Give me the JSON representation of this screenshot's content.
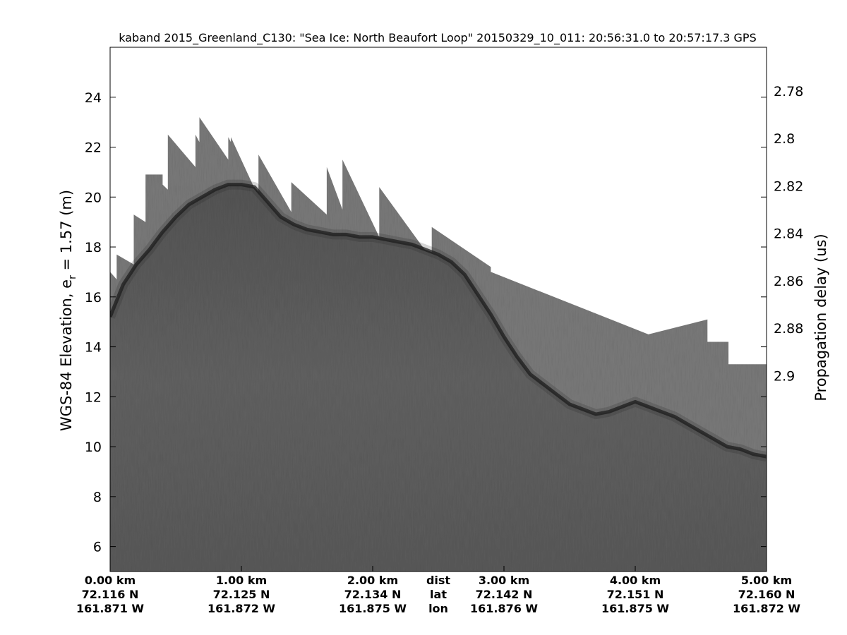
{
  "chart_data": {
    "type": "heatmap",
    "title": "kaband 2015_Greenland_C130: \"Sea Ice: North Beaufort Loop\"  20150329_10_011: 20:56:31.0 to 20:57:17.3 GPS",
    "ylabel_left_main": "WGS-84 Elevation, e",
    "ylabel_left_sub": "r",
    "ylabel_left_tail": " = 1.57 (m)",
    "ylabel_right": "Propagation delay (us)",
    "left_axis": {
      "ylim": [
        5,
        26
      ],
      "ticks": [
        6,
        8,
        10,
        12,
        14,
        16,
        18,
        20,
        22,
        24
      ],
      "tick_labels": [
        "6",
        "8",
        "10",
        "12",
        "14",
        "16",
        "18",
        "20",
        "22",
        "24"
      ]
    },
    "right_axis": {
      "ticks": [
        2.78,
        2.8,
        2.82,
        2.84,
        2.86,
        2.88,
        2.9
      ],
      "tick_labels": [
        "2.78",
        "2.8",
        "2.82",
        "2.84",
        "2.86",
        "2.88",
        "2.9"
      ],
      "label_elevations": [
        24.25,
        22.35,
        20.45,
        18.55,
        16.65,
        14.75,
        12.85
      ]
    },
    "x_axis": {
      "xlim_km": [
        0,
        5
      ],
      "ticks_km": [
        0,
        1,
        2,
        3,
        4,
        5
      ],
      "dist_labels": [
        "0.00 km",
        "1.00 km",
        "2.00 km",
        "3.00 km",
        "4.00 km",
        "5.00 km"
      ],
      "lat_labels": [
        "72.116 N",
        "72.125 N",
        "72.134 N",
        "72.142 N",
        "72.151 N",
        "72.160 N"
      ],
      "lon_labels": [
        "161.871 W",
        "161.872 W",
        "161.875 W",
        "161.876 W",
        "161.875 W",
        "161.872 W"
      ],
      "row_names": [
        "dist",
        "lat",
        "lon"
      ],
      "row_names_at_km": 2.5
    },
    "surface_profile": {
      "x_km": [
        0,
        0.1,
        0.2,
        0.3,
        0.4,
        0.5,
        0.6,
        0.7,
        0.8,
        0.9,
        1.0,
        1.1,
        1.2,
        1.3,
        1.4,
        1.5,
        1.6,
        1.7,
        1.8,
        1.9,
        2.0,
        2.1,
        2.2,
        2.3,
        2.4,
        2.5,
        2.6,
        2.7,
        2.8,
        2.9,
        3.0,
        3.1,
        3.2,
        3.3,
        3.4,
        3.5,
        3.6,
        3.7,
        3.8,
        3.9,
        4.0,
        4.1,
        4.2,
        4.3,
        4.4,
        4.5,
        4.6,
        4.7,
        4.8,
        4.9,
        5.0
      ],
      "elevation_m": [
        15.2,
        16.5,
        17.3,
        17.9,
        18.6,
        19.2,
        19.7,
        20.0,
        20.3,
        20.5,
        20.5,
        20.4,
        19.8,
        19.2,
        18.9,
        18.7,
        18.6,
        18.5,
        18.5,
        18.4,
        18.4,
        18.3,
        18.2,
        18.1,
        17.9,
        17.7,
        17.4,
        16.9,
        16.1,
        15.3,
        14.4,
        13.6,
        12.9,
        12.5,
        12.1,
        11.7,
        11.5,
        11.3,
        11.4,
        11.6,
        11.8,
        11.6,
        11.4,
        11.2,
        10.9,
        10.6,
        10.3,
        10.0,
        9.9,
        9.7,
        9.6
      ]
    },
    "window_top_edge": {
      "x_km": [
        0,
        0.05,
        0.05,
        0.18,
        0.18,
        0.27,
        0.27,
        0.4,
        0.4,
        0.44,
        0.44,
        0.65,
        0.65,
        0.68,
        0.68,
        0.9,
        0.9,
        0.92,
        0.92,
        1.13,
        1.13,
        1.38,
        1.38,
        1.65,
        1.65,
        1.77,
        1.77,
        2.05,
        2.05,
        2.45,
        2.45,
        2.9,
        2.9,
        4.1,
        4.55,
        4.55,
        4.71,
        4.71,
        5.0
      ],
      "elevation_m": [
        17.0,
        16.7,
        17.7,
        17.3,
        19.3,
        19.0,
        20.9,
        20.9,
        20.5,
        20.3,
        22.5,
        21.2,
        22.5,
        22.2,
        23.2,
        21.5,
        22.4,
        22.2,
        22.4,
        20.0,
        21.7,
        19.4,
        20.6,
        19.3,
        21.2,
        19.5,
        21.5,
        18.4,
        20.4,
        17.5,
        18.8,
        17.2,
        17.0,
        14.5,
        15.1,
        14.2,
        14.2,
        13.3,
        13.3
      ]
    },
    "colors": {
      "background": "#ffffff",
      "window_fill": "#7a7a7a",
      "body_fill": "#5d5d5d",
      "surface_line": "#1e1e1e",
      "frame": "#000000"
    }
  }
}
